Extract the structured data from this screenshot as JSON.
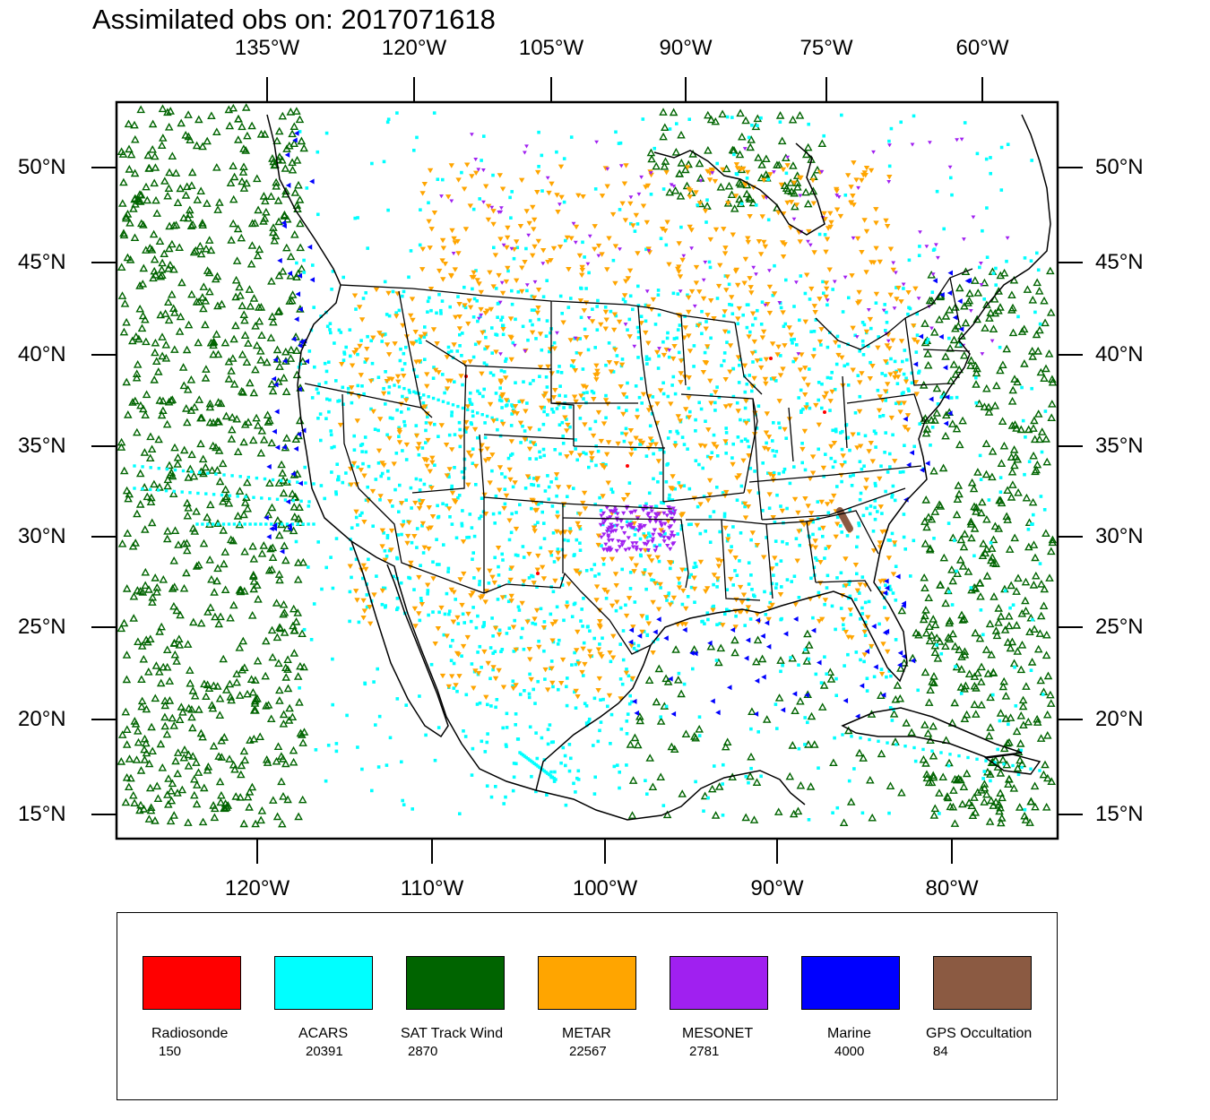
{
  "title": "Assimilated obs on: 2017071618",
  "map": {
    "top_lon_labels": [
      "135°W",
      "120°W",
      "105°W",
      "90°W",
      "75°W",
      "60°W"
    ],
    "bottom_lon_labels": [
      "120°W",
      "110°W",
      "100°W",
      "90°W",
      "80°W"
    ],
    "lat_labels": [
      "50°N",
      "45°N",
      "40°N",
      "35°N",
      "30°N",
      "25°N",
      "20°N",
      "15°N"
    ]
  },
  "legend": {
    "items": [
      {
        "label": "Radiosonde",
        "count": "150",
        "color": "#ff0000"
      },
      {
        "label": "ACARS",
        "count": "20391",
        "color": "#00ffff"
      },
      {
        "label": "SAT Track Wind",
        "count": "2870",
        "color": "#006400"
      },
      {
        "label": "METAR",
        "count": "22567",
        "color": "#ffa500"
      },
      {
        "label": "MESONET",
        "count": "2781",
        "color": "#a020f0"
      },
      {
        "label": "Marine",
        "count": "4000",
        "color": "#0000ff"
      },
      {
        "label": "GPS Occultation",
        "count": "84",
        "color": "#8b5a42"
      }
    ]
  }
}
